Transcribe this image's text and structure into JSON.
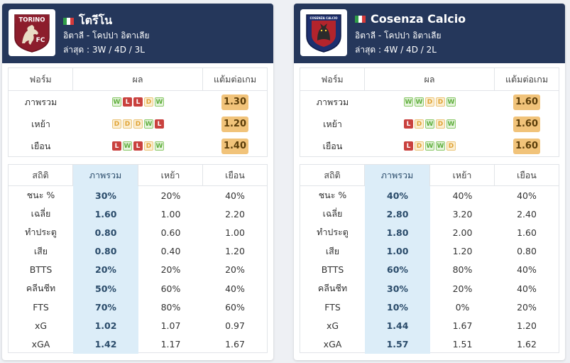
{
  "teams": [
    {
      "name": "โตรีโน",
      "logo_text_top": "TORINO",
      "logo_text_bottom": "FC",
      "country_line": "อิตาลี - โคปปา อิตาเลีย",
      "recent_line": "ล่าสุด : 3W / 4D / 3L",
      "flag_colors": [
        "#2f9e48",
        "#ffffff",
        "#d63a3a"
      ],
      "form_headers": [
        "ฟอร์ม",
        "ผล",
        "แต้มต่อเกม"
      ],
      "form_rows": [
        {
          "label": "ภาพรวม",
          "results": [
            "W",
            "L",
            "L",
            "D",
            "W"
          ],
          "ppg": "1.30"
        },
        {
          "label": "เหย้า",
          "results": [
            "D",
            "D",
            "D",
            "W",
            "L"
          ],
          "ppg": "1.20"
        },
        {
          "label": "เยือน",
          "results": [
            "L",
            "W",
            "L",
            "D",
            "W"
          ],
          "ppg": "1.40"
        }
      ],
      "stats_headers": [
        "สถิติ",
        "ภาพรวม",
        "เหย้า",
        "เยือน"
      ],
      "stats_rows": [
        {
          "label": "ชนะ %",
          "overall": "30%",
          "home": "20%",
          "away": "40%"
        },
        {
          "label": "เฉลี่ย",
          "overall": "1.60",
          "home": "1.00",
          "away": "2.20"
        },
        {
          "label": "ทำประตู",
          "overall": "0.80",
          "home": "0.60",
          "away": "1.00"
        },
        {
          "label": "เสีย",
          "overall": "0.80",
          "home": "0.40",
          "away": "1.20"
        },
        {
          "label": "BTTS",
          "overall": "20%",
          "home": "20%",
          "away": "20%"
        },
        {
          "label": "คลีนชีท",
          "overall": "50%",
          "home": "60%",
          "away": "40%"
        },
        {
          "label": "FTS",
          "overall": "70%",
          "home": "80%",
          "away": "60%"
        },
        {
          "label": "xG",
          "overall": "1.02",
          "home": "1.07",
          "away": "0.97"
        },
        {
          "label": "xGA",
          "overall": "1.42",
          "home": "1.17",
          "away": "1.67"
        }
      ]
    },
    {
      "name": "Cosenza Calcio",
      "logo_text_top": "COSENZA CALCIO",
      "logo_text_bottom": "",
      "country_line": "อิตาลี - โคปปา อิตาเลีย",
      "recent_line": "ล่าสุด : 4W / 4D / 2L",
      "flag_colors": [
        "#2f9e48",
        "#ffffff",
        "#d63a3a"
      ],
      "form_headers": [
        "ฟอร์ม",
        "ผล",
        "แต้มต่อเกม"
      ],
      "form_rows": [
        {
          "label": "ภาพรวม",
          "results": [
            "W",
            "W",
            "D",
            "D",
            "W"
          ],
          "ppg": "1.60"
        },
        {
          "label": "เหย้า",
          "results": [
            "L",
            "D",
            "W",
            "D",
            "W"
          ],
          "ppg": "1.60"
        },
        {
          "label": "เยือน",
          "results": [
            "L",
            "D",
            "W",
            "W",
            "D"
          ],
          "ppg": "1.60"
        }
      ],
      "stats_headers": [
        "สถิติ",
        "ภาพรวม",
        "เหย้า",
        "เยือน"
      ],
      "stats_rows": [
        {
          "label": "ชนะ %",
          "overall": "40%",
          "home": "40%",
          "away": "40%"
        },
        {
          "label": "เฉลี่ย",
          "overall": "2.80",
          "home": "3.20",
          "away": "2.40"
        },
        {
          "label": "ทำประตู",
          "overall": "1.80",
          "home": "2.00",
          "away": "1.60"
        },
        {
          "label": "เสีย",
          "overall": "1.00",
          "home": "1.20",
          "away": "0.80"
        },
        {
          "label": "BTTS",
          "overall": "60%",
          "home": "80%",
          "away": "40%"
        },
        {
          "label": "คลีนชีท",
          "overall": "30%",
          "home": "20%",
          "away": "40%"
        },
        {
          "label": "FTS",
          "overall": "10%",
          "home": "0%",
          "away": "20%"
        },
        {
          "label": "xG",
          "overall": "1.44",
          "home": "1.67",
          "away": "1.20"
        },
        {
          "label": "xGA",
          "overall": "1.57",
          "home": "1.51",
          "away": "1.62"
        }
      ]
    }
  ],
  "colors": {
    "header_bg": "#25375b",
    "win": "#5fae3d",
    "loss": "#c9413e",
    "draw": "#e0a335",
    "ppg_bg": "#f1c37a",
    "highlight_col": "#dcedf8"
  }
}
